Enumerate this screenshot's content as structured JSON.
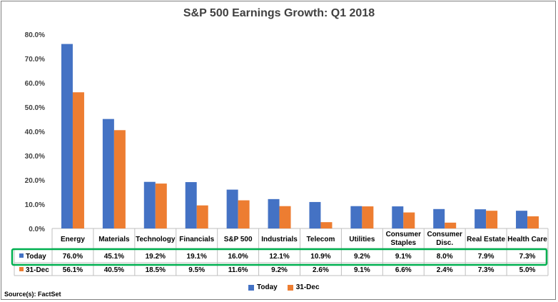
{
  "chart_data": {
    "type": "bar",
    "title": "S&P 500 Earnings Growth: Q1 2018",
    "categories": [
      "Energy",
      "Materials",
      "Technology",
      "Financials",
      "S&P 500",
      "Industrials",
      "Telecom",
      "Utilities",
      "Consumer Staples",
      "Consumer Disc.",
      "Real Estate",
      "Health Care"
    ],
    "series": [
      {
        "name": "Today",
        "values": [
          76.0,
          45.1,
          19.2,
          19.1,
          16.0,
          12.1,
          10.9,
          9.2,
          9.1,
          8.0,
          7.9,
          7.3
        ],
        "labels": [
          "76.0%",
          "45.1%",
          "19.2%",
          "19.1%",
          "16.0%",
          "12.1%",
          "10.9%",
          "9.2%",
          "9.1%",
          "8.0%",
          "7.9%",
          "7.3%"
        ],
        "color": "#4472c4"
      },
      {
        "name": "31-Dec",
        "values": [
          56.1,
          40.5,
          18.5,
          9.5,
          11.6,
          9.2,
          2.6,
          9.1,
          6.6,
          2.4,
          7.3,
          5.0
        ],
        "labels": [
          "56.1%",
          "40.5%",
          "18.5%",
          "9.5%",
          "11.6%",
          "9.2%",
          "2.6%",
          "9.1%",
          "6.6%",
          "2.4%",
          "7.3%",
          "5.0%"
        ],
        "color": "#ed7d31"
      }
    ],
    "ylim": [
      0,
      80
    ],
    "yticks": [
      "0.0%",
      "10.0%",
      "20.0%",
      "30.0%",
      "40.0%",
      "50.0%",
      "60.0%",
      "70.0%",
      "80.0%"
    ],
    "grid": false,
    "legend": "bottom",
    "data_table": true,
    "highlight_row": "Today",
    "highlight_color": "#00b050"
  },
  "source": "Source(s): FactSet"
}
